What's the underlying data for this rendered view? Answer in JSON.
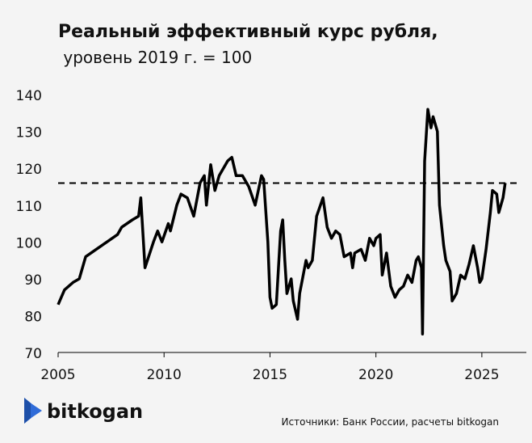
{
  "chart_data": {
    "type": "line",
    "title": "Реальный эффективный курс рубля,",
    "subtitle": " уровень 2019 г. = 100",
    "source": "Источники: Банк России, расчеты bitkogan",
    "logo_text": "bitkogan",
    "color": "#000000",
    "reference_line": 116,
    "grid": false,
    "xlim": [
      2005,
      2027.1
    ],
    "xticks": [
      2005,
      2010,
      2015,
      2020,
      2025
    ],
    "ylim": [
      70,
      142
    ],
    "yticks": [
      70,
      80,
      90,
      100,
      110,
      120,
      130,
      140
    ],
    "x": [
      2005.0,
      2005.3,
      2005.7,
      2006.0,
      2006.3,
      2006.8,
      2007.3,
      2007.8,
      2008.0,
      2008.5,
      2008.8,
      2008.9,
      2009.1,
      2009.5,
      2009.7,
      2009.9,
      2010.2,
      2010.3,
      2010.6,
      2010.8,
      2011.1,
      2011.4,
      2011.7,
      2011.9,
      2012.0,
      2012.2,
      2012.4,
      2012.6,
      2013.0,
      2013.2,
      2013.4,
      2013.7,
      2014.0,
      2014.3,
      2014.6,
      2014.7,
      2014.9,
      2015.0,
      2015.1,
      2015.3,
      2015.5,
      2015.6,
      2015.7,
      2015.8,
      2016.0,
      2016.1,
      2016.3,
      2016.4,
      2016.7,
      2016.8,
      2017.0,
      2017.2,
      2017.5,
      2017.7,
      2017.9,
      2018.1,
      2018.3,
      2018.5,
      2018.8,
      2018.9,
      2019.0,
      2019.3,
      2019.5,
      2019.7,
      2019.9,
      2020.0,
      2020.2,
      2020.3,
      2020.5,
      2020.7,
      2020.9,
      2021.1,
      2021.3,
      2021.5,
      2021.7,
      2021.9,
      2022.0,
      2022.15,
      2022.2,
      2022.3,
      2022.45,
      2022.6,
      2022.7,
      2022.9,
      2023.0,
      2023.2,
      2023.3,
      2023.5,
      2023.6,
      2023.8,
      2024.0,
      2024.2,
      2024.4,
      2024.6,
      2024.8,
      2024.9,
      2025.0,
      2025.2,
      2025.4,
      2025.5,
      2025.7,
      2025.8,
      2026.0,
      2026.1
    ],
    "values": [
      83,
      87,
      89,
      90,
      96,
      98,
      100,
      102,
      104,
      106,
      107,
      112,
      93,
      100,
      103,
      100,
      105,
      103,
      110,
      113,
      112,
      107,
      116,
      118,
      110,
      121,
      114,
      118,
      122,
      123,
      118,
      118,
      115,
      110,
      118,
      117,
      100,
      85,
      82,
      83,
      103,
      106,
      95,
      86,
      90,
      84,
      79,
      86,
      95,
      93,
      95,
      107,
      112,
      104,
      101,
      103,
      102,
      96,
      97,
      93,
      97,
      98,
      95,
      101,
      99,
      101,
      102,
      91,
      97,
      88,
      85,
      87,
      88,
      91,
      89,
      95,
      96,
      93,
      75,
      122,
      136,
      131,
      134,
      130,
      110,
      99,
      95,
      92,
      84,
      86,
      91,
      90,
      94,
      99,
      93,
      89,
      90,
      98,
      108,
      114,
      113,
      108,
      112,
      116
    ]
  }
}
